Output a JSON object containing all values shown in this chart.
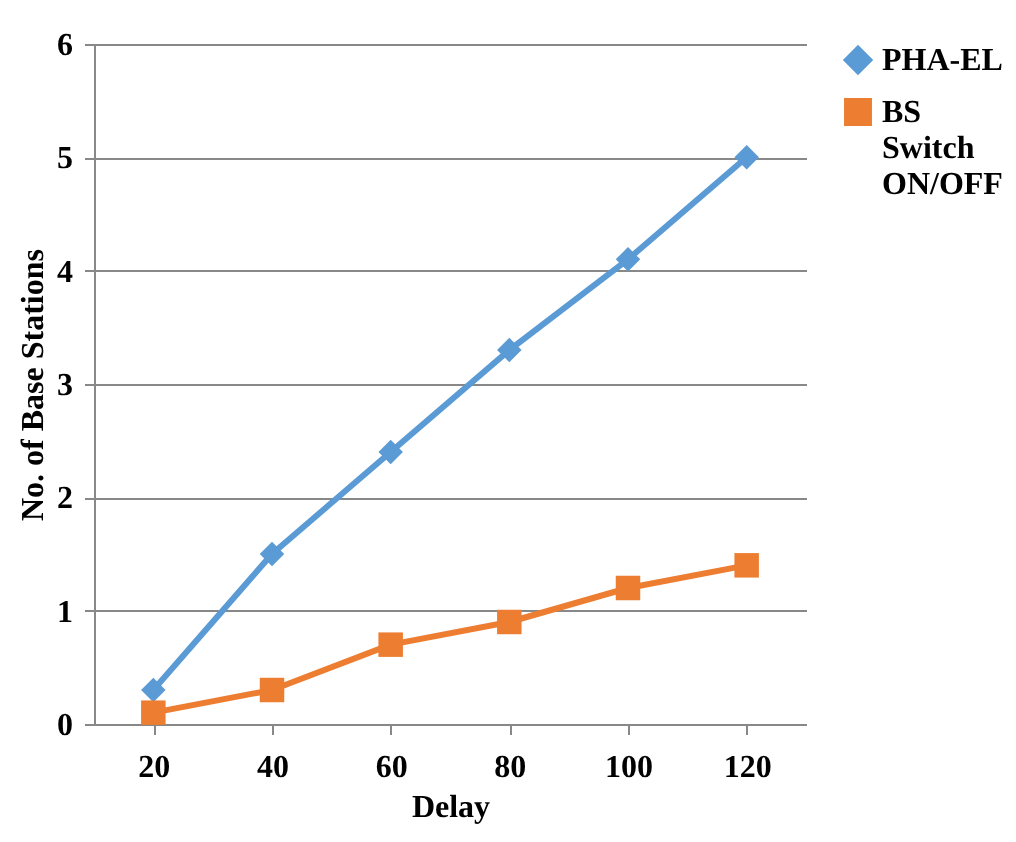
{
  "chart_data": {
    "type": "line",
    "xlabel": "Delay",
    "ylabel": "No. of Base Stations",
    "categories": [
      "20",
      "40",
      "60",
      "80",
      "100",
      "120"
    ],
    "series": [
      {
        "name": "PHA-EL",
        "color": "#5b9bd5",
        "marker": "diamond",
        "values": [
          0.3,
          1.5,
          2.4,
          3.3,
          4.1,
          5.0
        ]
      },
      {
        "name": "BS Switch ON/OFF",
        "color": "#ed7d31",
        "marker": "square",
        "values": [
          0.1,
          0.3,
          0.7,
          0.9,
          1.2,
          1.4
        ]
      }
    ],
    "ylim": [
      0,
      6
    ],
    "yticks": [
      0,
      1,
      2,
      3,
      4,
      5,
      6
    ],
    "grid": "y",
    "legend": "right",
    "line_style": "solid"
  }
}
